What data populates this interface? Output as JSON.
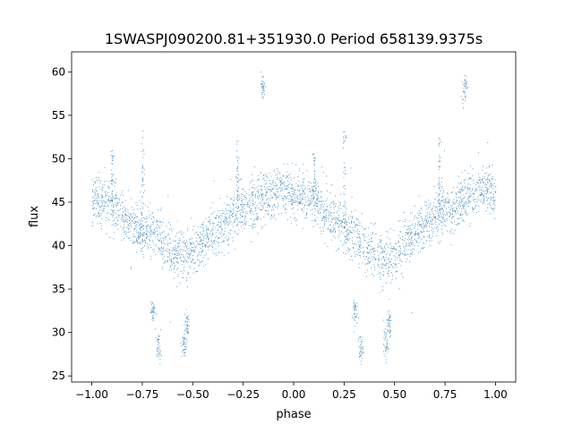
{
  "chart_data": {
    "type": "scatter",
    "title": "1SWASPJ090200.81+351930.0 Period 658139.9375s",
    "xlabel": "phase",
    "ylabel": "flux",
    "xlim": [
      -1.1,
      1.1
    ],
    "ylim": [
      24.3,
      62.3
    ],
    "xticks": [
      -1.0,
      -0.75,
      -0.5,
      -0.25,
      0.0,
      0.25,
      0.5,
      0.75,
      1.0
    ],
    "xtick_labels": [
      "−1.00",
      "−0.75",
      "−0.50",
      "−0.25",
      "0.00",
      "0.25",
      "0.50",
      "0.75",
      "1.00"
    ],
    "yticks": [
      25,
      30,
      35,
      40,
      45,
      50,
      55,
      60
    ],
    "ytick_labels": [
      "25",
      "30",
      "35",
      "40",
      "45",
      "50",
      "55",
      "60"
    ],
    "grid": false,
    "legend": "none",
    "marker_color": "#1f77b4",
    "trend": {
      "phase": [
        -1.0,
        -0.95,
        -0.9,
        -0.85,
        -0.8,
        -0.75,
        -0.7,
        -0.65,
        -0.6,
        -0.55,
        -0.5,
        -0.45,
        -0.4,
        -0.35,
        -0.3,
        -0.25,
        -0.2,
        -0.15,
        -0.1,
        -0.05,
        0.0,
        0.05,
        0.1,
        0.15,
        0.2,
        0.25,
        0.3,
        0.35,
        0.4,
        0.45,
        0.5,
        0.55,
        0.6,
        0.65,
        0.7,
        0.75,
        0.8,
        0.85,
        0.9,
        0.95,
        1.0
      ],
      "flux": [
        45.5,
        45.0,
        44.5,
        43.5,
        42.5,
        41.8,
        41.5,
        40.5,
        39.5,
        39.0,
        39.5,
        40.5,
        41.5,
        42.5,
        43.5,
        44.5,
        45.0,
        45.5,
        46.0,
        46.5,
        46.0,
        45.5,
        45.0,
        44.0,
        43.0,
        42.0,
        41.5,
        40.0,
        39.0,
        38.5,
        39.0,
        40.5,
        41.5,
        42.5,
        43.5,
        44.0,
        44.8,
        45.2,
        46.0,
        46.5,
        46.0
      ]
    },
    "scatter_sd": 1.4,
    "n_points": 14000,
    "outlier_clusters": [
      {
        "x": -0.155,
        "y": 58.3
      },
      {
        "x": 0.845,
        "y": 58.3
      },
      {
        "x": -0.67,
        "y": 28.2
      },
      {
        "x": -0.545,
        "y": 28.6
      },
      {
        "x": 0.33,
        "y": 28.2
      },
      {
        "x": 0.455,
        "y": 28.6
      },
      {
        "x": -0.7,
        "y": 32.5
      },
      {
        "x": 0.3,
        "y": 32.5
      },
      {
        "x": -0.53,
        "y": 31.0
      },
      {
        "x": 0.47,
        "y": 31.0
      }
    ],
    "flare_columns": [
      {
        "x": -0.75,
        "y_top": 53.5
      },
      {
        "x": 0.25,
        "y_top": 53.5
      },
      {
        "x": -0.9,
        "y_top": 51.0
      },
      {
        "x": 0.1,
        "y_top": 51.0
      },
      {
        "x": -0.28,
        "y_top": 52.5
      },
      {
        "x": 0.72,
        "y_top": 52.5
      }
    ]
  }
}
